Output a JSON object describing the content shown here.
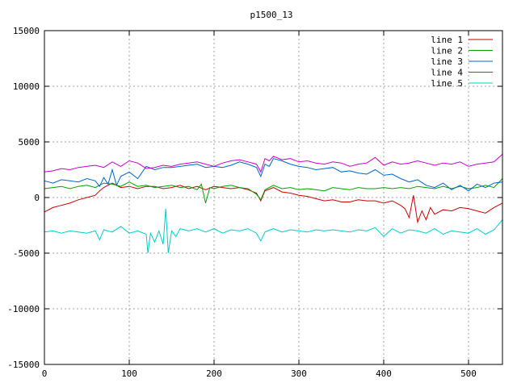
{
  "chart_data": {
    "type": "line",
    "title": "p1500_13",
    "xlabel": "",
    "ylabel": "",
    "xlim": [
      0,
      540
    ],
    "ylim": [
      -15000,
      15000
    ],
    "x_ticks": [
      0,
      100,
      200,
      300,
      400,
      500
    ],
    "y_ticks": [
      -15000,
      -10000,
      -5000,
      0,
      5000,
      10000,
      15000
    ],
    "grid": true,
    "legend_position": "top-right",
    "series": [
      {
        "name": "line 1",
        "color": "#cc0000",
        "x": [
          0,
          10,
          20,
          30,
          40,
          50,
          60,
          65,
          70,
          75,
          80,
          90,
          100,
          110,
          120,
          130,
          140,
          150,
          160,
          170,
          180,
          190,
          200,
          210,
          220,
          230,
          240,
          250,
          255,
          260,
          270,
          280,
          290,
          300,
          310,
          320,
          330,
          340,
          350,
          360,
          370,
          380,
          390,
          400,
          410,
          420,
          425,
          430,
          435,
          440,
          445,
          450,
          455,
          460,
          470,
          480,
          490,
          500,
          510,
          520,
          530,
          540
        ],
        "y": [
          -1300,
          -900,
          -700,
          -500,
          -200,
          0,
          200,
          600,
          900,
          1100,
          1300,
          900,
          1000,
          800,
          1000,
          1000,
          800,
          900,
          1100,
          800,
          1000,
          700,
          1000,
          900,
          800,
          900,
          700,
          400,
          -300,
          600,
          900,
          500,
          400,
          200,
          100,
          -100,
          -300,
          -200,
          -400,
          -400,
          -200,
          -300,
          -300,
          -500,
          -300,
          -700,
          -1000,
          -1800,
          200,
          -2200,
          -1200,
          -2000,
          -900,
          -1500,
          -1100,
          -1200,
          -900,
          -1000,
          -1200,
          -1400,
          -900,
          -500
        ]
      },
      {
        "name": "line 2",
        "color": "#00a000",
        "x": [
          0,
          10,
          20,
          30,
          40,
          50,
          60,
          70,
          80,
          90,
          100,
          110,
          120,
          130,
          140,
          150,
          160,
          170,
          180,
          185,
          190,
          195,
          200,
          210,
          220,
          230,
          240,
          250,
          255,
          260,
          270,
          280,
          290,
          300,
          310,
          320,
          330,
          340,
          350,
          360,
          370,
          380,
          390,
          400,
          410,
          420,
          430,
          440,
          450,
          460,
          470,
          480,
          490,
          500,
          510,
          520,
          530,
          540
        ],
        "y": [
          800,
          900,
          1000,
          800,
          1000,
          1100,
          900,
          1300,
          1200,
          1000,
          1400,
          1000,
          1100,
          900,
          1000,
          1100,
          900,
          1000,
          700,
          1200,
          -500,
          900,
          800,
          1000,
          1100,
          900,
          800,
          300,
          -200,
          700,
          1100,
          800,
          900,
          700,
          800,
          700,
          600,
          900,
          800,
          700,
          900,
          800,
          800,
          900,
          800,
          900,
          800,
          1000,
          900,
          800,
          1000,
          800,
          1000,
          800,
          900,
          1100,
          900,
          1700
        ]
      },
      {
        "name": "line 3",
        "color": "#0066cc",
        "x": [
          0,
          10,
          20,
          30,
          40,
          50,
          60,
          65,
          70,
          75,
          80,
          85,
          90,
          100,
          110,
          120,
          130,
          140,
          150,
          160,
          170,
          180,
          190,
          200,
          210,
          220,
          230,
          240,
          250,
          255,
          260,
          265,
          270,
          280,
          290,
          300,
          310,
          320,
          330,
          340,
          350,
          360,
          370,
          380,
          390,
          400,
          410,
          420,
          430,
          440,
          450,
          460,
          470,
          480,
          490,
          500,
          510,
          520,
          530,
          540
        ],
        "y": [
          1500,
          1300,
          1600,
          1500,
          1400,
          1700,
          1500,
          1000,
          1800,
          1200,
          2500,
          1100,
          1900,
          2300,
          1700,
          2800,
          2500,
          2700,
          2700,
          2800,
          2900,
          3000,
          2700,
          2800,
          2700,
          2900,
          3200,
          3000,
          2700,
          1900,
          3000,
          2800,
          3500,
          3300,
          3000,
          2800,
          2700,
          2500,
          2600,
          2700,
          2300,
          2400,
          2200,
          2100,
          2500,
          2000,
          2100,
          1700,
          1400,
          1600,
          1100,
          900,
          1300,
          700,
          1100,
          600,
          1200,
          900,
          1300,
          1400
        ]
      },
      {
        "name": "line 4",
        "color": "#cc00cc",
        "x": [
          0,
          10,
          20,
          30,
          40,
          50,
          60,
          70,
          80,
          90,
          100,
          110,
          120,
          130,
          140,
          150,
          160,
          170,
          180,
          190,
          200,
          210,
          220,
          230,
          240,
          250,
          255,
          260,
          265,
          270,
          280,
          290,
          300,
          310,
          320,
          330,
          340,
          350,
          360,
          370,
          380,
          390,
          400,
          410,
          420,
          430,
          440,
          450,
          460,
          470,
          480,
          490,
          500,
          510,
          520,
          530,
          540
        ],
        "y": [
          2300,
          2400,
          2600,
          2500,
          2700,
          2800,
          2900,
          2700,
          3200,
          2800,
          3300,
          3100,
          2600,
          2700,
          2900,
          2800,
          3000,
          3100,
          3200,
          3000,
          2800,
          3100,
          3300,
          3400,
          3200,
          3000,
          2300,
          3500,
          3300,
          3700,
          3400,
          3500,
          3200,
          3300,
          3100,
          3000,
          3200,
          3100,
          2800,
          3000,
          3100,
          3600,
          2900,
          3200,
          3000,
          3100,
          3300,
          3100,
          2900,
          3100,
          3000,
          3200,
          2800,
          3000,
          3100,
          3200,
          3900
        ]
      },
      {
        "name": "line 5",
        "color": "#00cccc",
        "x": [
          0,
          10,
          20,
          30,
          40,
          50,
          60,
          65,
          70,
          80,
          90,
          100,
          110,
          120,
          122,
          125,
          130,
          135,
          140,
          143,
          146,
          150,
          155,
          160,
          170,
          180,
          190,
          200,
          210,
          220,
          230,
          240,
          250,
          255,
          260,
          270,
          280,
          290,
          300,
          310,
          320,
          330,
          340,
          350,
          360,
          370,
          380,
          390,
          400,
          410,
          420,
          430,
          440,
          450,
          460,
          470,
          480,
          490,
          500,
          510,
          520,
          530,
          540
        ],
        "y": [
          -3100,
          -3000,
          -3200,
          -3000,
          -3100,
          -3200,
          -3000,
          -3800,
          -2900,
          -3100,
          -2600,
          -3200,
          -3000,
          -3300,
          -5000,
          -3200,
          -4000,
          -3000,
          -4200,
          -1000,
          -5000,
          -3000,
          -3500,
          -2800,
          -3000,
          -2800,
          -3100,
          -2800,
          -3200,
          -2900,
          -3000,
          -2800,
          -3200,
          -3900,
          -3100,
          -2800,
          -3100,
          -2900,
          -3000,
          -3100,
          -2900,
          -3000,
          -2900,
          -3000,
          -3100,
          -2900,
          -3000,
          -2700,
          -3500,
          -2800,
          -3200,
          -2900,
          -3000,
          -3200,
          -2800,
          -3300,
          -3000,
          -3100,
          -3200,
          -2800,
          -3300,
          -2900,
          -2000
        ]
      }
    ]
  }
}
